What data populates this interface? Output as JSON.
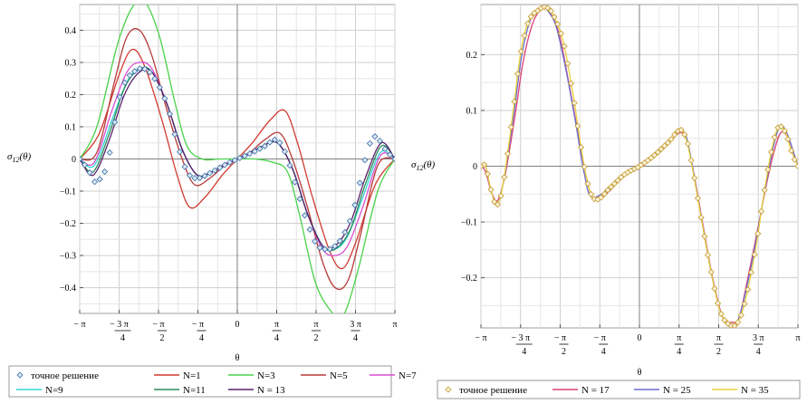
{
  "chart_data": [
    {
      "type": "line",
      "ylabel": "σ12(θ)",
      "xlabel": "θ",
      "xlim": [
        -3.14159,
        3.14159
      ],
      "ylim": [
        -0.48,
        0.48
      ],
      "x_ticks": [
        {
          "v": -3.14159,
          "num": "− π",
          "den": ""
        },
        {
          "v": -2.35619,
          "num": "− 3 π",
          "den": "4"
        },
        {
          "v": -1.5708,
          "num": "− π",
          "den": "2"
        },
        {
          "v": -0.785398,
          "num": "− π",
          "den": "4"
        },
        {
          "v": 0,
          "num": "0",
          "den": ""
        },
        {
          "v": 0.785398,
          "num": "π",
          "den": "4"
        },
        {
          "v": 1.5708,
          "num": "π",
          "den": "2"
        },
        {
          "v": 2.35619,
          "num": "3 π",
          "den": "4"
        },
        {
          "v": 3.14159,
          "num": "π",
          "den": ""
        }
      ],
      "y_ticks": [
        {
          "v": 0.4,
          "label": "0.4"
        },
        {
          "v": 0.3,
          "label": "0.3"
        },
        {
          "v": 0.2,
          "label": "0.2"
        },
        {
          "v": 0.1,
          "label": "0.1"
        },
        {
          "v": 0,
          "label": "0"
        },
        {
          "v": -0.1,
          "label": "−0.1"
        },
        {
          "v": -0.2,
          "label": "−0.2"
        },
        {
          "v": -0.3,
          "label": "−0.3"
        },
        {
          "v": -0.4,
          "label": "−0.4"
        }
      ],
      "grid": true,
      "legend_position": "bottom",
      "exact": {
        "name": "точное решение",
        "color": "#3a6ea5",
        "x": [
          -3.14,
          -2.9,
          -2.83,
          -2.6,
          -2.36,
          -2.2,
          -1.95,
          -1.85,
          -1.65,
          -1.4,
          -1.2,
          -1.0,
          -0.8,
          -0.5,
          -0.2,
          0,
          0.3,
          0.55,
          0.75,
          0.85,
          1.0,
          1.2,
          1.4,
          1.6,
          1.85,
          1.95,
          2.1,
          2.3,
          2.45,
          2.6,
          2.75,
          2.95,
          3.14
        ],
        "y": [
          0,
          -0.05,
          -0.07,
          -0.02,
          0.18,
          0.25,
          0.28,
          0.28,
          0.25,
          0.17,
          0.05,
          -0.04,
          -0.06,
          -0.04,
          -0.015,
          0,
          0.02,
          0.04,
          0.06,
          0.05,
          0.0,
          -0.1,
          -0.2,
          -0.27,
          -0.28,
          -0.27,
          -0.24,
          -0.17,
          -0.07,
          0.03,
          0.07,
          0.03,
          0
        ]
      },
      "series": [
        {
          "name": "N=1",
          "color": "#d03a2f",
          "x": [
            -3.14,
            -2.75,
            -2.36,
            -2.1,
            -1.85,
            -1.5,
            -1.2,
            -0.95,
            -0.65,
            -0.3,
            0,
            0.3,
            0.65,
            0.95,
            1.2,
            1.5,
            1.85,
            2.1,
            2.36,
            2.75,
            3.14
          ],
          "y": [
            0,
            0.08,
            0.26,
            0.34,
            0.29,
            0.12,
            -0.05,
            -0.15,
            -0.12,
            -0.05,
            0,
            0.05,
            0.12,
            0.15,
            0.05,
            -0.12,
            -0.29,
            -0.34,
            -0.26,
            -0.08,
            0
          ]
        },
        {
          "name": "N=3",
          "color": "#4ad24a",
          "x": [
            -3.14,
            -2.8,
            -2.4,
            -2.1,
            -1.85,
            -1.55,
            -1.25,
            -1.0,
            -0.7,
            -0.35,
            0,
            0.35,
            0.7,
            1.0,
            1.25,
            1.55,
            1.85,
            2.1,
            2.4,
            2.8,
            3.14
          ],
          "y": [
            0,
            0.1,
            0.35,
            0.47,
            0.49,
            0.38,
            0.18,
            0.04,
            0.0,
            0.0,
            0,
            0.0,
            -0.01,
            -0.04,
            -0.18,
            -0.38,
            -0.47,
            -0.49,
            -0.35,
            -0.1,
            0
          ]
        },
        {
          "name": "N=5",
          "color": "#b83a3a",
          "x": [
            -3.14,
            -2.8,
            -2.45,
            -2.2,
            -1.95,
            -1.7,
            -1.4,
            -1.1,
            -0.85,
            -0.55,
            -0.25,
            0,
            0.25,
            0.55,
            0.85,
            1.1,
            1.4,
            1.7,
            1.95,
            2.2,
            2.45,
            2.8,
            3.14
          ],
          "y": [
            0,
            0.02,
            0.24,
            0.38,
            0.4,
            0.32,
            0.15,
            0.0,
            -0.08,
            -0.06,
            -0.02,
            0,
            0.02,
            0.06,
            0.08,
            0.0,
            -0.15,
            -0.32,
            -0.4,
            -0.38,
            -0.24,
            -0.02,
            0
          ]
        },
        {
          "name": "N=7",
          "color": "#d94fd1",
          "x": [
            -3.14,
            -2.85,
            -2.5,
            -2.2,
            -1.95,
            -1.7,
            -1.4,
            -1.1,
            -0.8,
            -0.5,
            -0.25,
            0,
            0.25,
            0.5,
            0.8,
            1.1,
            1.4,
            1.7,
            1.95,
            2.2,
            2.5,
            2.85,
            3.14
          ],
          "y": [
            0,
            -0.01,
            0.15,
            0.27,
            0.3,
            0.28,
            0.17,
            0.03,
            -0.05,
            -0.04,
            -0.015,
            0,
            0.015,
            0.04,
            0.05,
            -0.03,
            -0.17,
            -0.28,
            -0.3,
            -0.27,
            -0.15,
            0.01,
            0
          ]
        },
        {
          "name": "N=9",
          "color": "#35d6d6",
          "x": [
            -3.14,
            -2.85,
            -2.5,
            -2.2,
            -1.95,
            -1.7,
            -1.4,
            -1.1,
            -0.8,
            -0.5,
            -0.2,
            0,
            0.2,
            0.5,
            0.8,
            1.1,
            1.4,
            1.7,
            1.95,
            2.2,
            2.5,
            2.85,
            3.14
          ],
          "y": [
            0,
            -0.02,
            0.12,
            0.24,
            0.28,
            0.27,
            0.17,
            0.03,
            -0.05,
            -0.04,
            -0.015,
            0,
            0.015,
            0.04,
            0.05,
            -0.03,
            -0.17,
            -0.27,
            -0.28,
            -0.24,
            -0.12,
            0.02,
            0
          ]
        },
        {
          "name": "N=11",
          "color": "#2e8b57",
          "x": [
            -3.14,
            -2.87,
            -2.55,
            -2.25,
            -1.95,
            -1.7,
            -1.4,
            -1.1,
            -0.8,
            -0.5,
            -0.2,
            0,
            0.2,
            0.5,
            0.8,
            1.1,
            1.4,
            1.7,
            1.95,
            2.25,
            2.55,
            2.87,
            3.14
          ],
          "y": [
            0,
            -0.04,
            0.08,
            0.22,
            0.28,
            0.27,
            0.17,
            0.03,
            -0.05,
            -0.04,
            -0.015,
            0,
            0.015,
            0.04,
            0.05,
            -0.03,
            -0.17,
            -0.27,
            -0.28,
            -0.22,
            -0.08,
            0.04,
            0
          ]
        },
        {
          "name": "N = 13",
          "color": "#5a1f6e",
          "x": [
            -3.14,
            -2.87,
            -2.55,
            -2.25,
            -1.95,
            -1.7,
            -1.4,
            -1.1,
            -0.8,
            -0.5,
            -0.2,
            0,
            0.2,
            0.5,
            0.8,
            1.1,
            1.4,
            1.7,
            1.95,
            2.25,
            2.55,
            2.87,
            3.14
          ],
          "y": [
            0,
            -0.05,
            0.06,
            0.2,
            0.27,
            0.27,
            0.17,
            0.03,
            -0.05,
            -0.04,
            -0.015,
            0,
            0.015,
            0.04,
            0.05,
            -0.03,
            -0.17,
            -0.27,
            -0.27,
            -0.2,
            -0.06,
            0.05,
            0
          ]
        }
      ]
    },
    {
      "type": "line",
      "ylabel": "σ12(θ)",
      "xlabel": "θ",
      "xlim": [
        -3.14159,
        3.14159
      ],
      "ylim": [
        -0.29,
        0.29
      ],
      "x_ticks": [
        {
          "v": -3.14159,
          "num": "− π",
          "den": ""
        },
        {
          "v": -2.35619,
          "num": "− 3 π",
          "den": "4"
        },
        {
          "v": -1.5708,
          "num": "− π",
          "den": "2"
        },
        {
          "v": -0.785398,
          "num": "− π",
          "den": "4"
        },
        {
          "v": 0,
          "num": "0",
          "den": ""
        },
        {
          "v": 0.785398,
          "num": "π",
          "den": "4"
        },
        {
          "v": 1.5708,
          "num": "π",
          "den": "2"
        },
        {
          "v": 2.35619,
          "num": "3 π",
          "den": "4"
        },
        {
          "v": 3.14159,
          "num": "π",
          "den": ""
        }
      ],
      "y_ticks": [
        {
          "v": 0.2,
          "label": "0.2"
        },
        {
          "v": 0.1,
          "label": "0.1"
        },
        {
          "v": 0,
          "label": "0"
        },
        {
          "v": -0.1,
          "label": "−0.1"
        },
        {
          "v": -0.2,
          "label": "−0.2"
        }
      ],
      "grid": true,
      "legend_position": "bottom",
      "exact": {
        "name": "точное решение",
        "color": "#c49a2e",
        "x": [
          -3.14,
          -3.05,
          -2.95,
          -2.83,
          -2.7,
          -2.5,
          -2.36,
          -2.2,
          -2.0,
          -1.85,
          -1.7,
          -1.5,
          -1.3,
          -1.15,
          -1.0,
          -0.85,
          -0.6,
          -0.3,
          0,
          0.3,
          0.6,
          0.8,
          0.9,
          1.0,
          1.2,
          1.4,
          1.6,
          1.8,
          1.95,
          2.1,
          2.3,
          2.45,
          2.6,
          2.75,
          2.9,
          3.0,
          3.14
        ],
        "y": [
          0,
          0,
          -0.04,
          -0.07,
          -0.03,
          0.1,
          0.2,
          0.26,
          0.28,
          0.285,
          0.27,
          0.22,
          0.12,
          0.03,
          -0.04,
          -0.06,
          -0.04,
          -0.015,
          0,
          0.02,
          0.045,
          0.065,
          0.055,
          0.02,
          -0.08,
          -0.18,
          -0.26,
          -0.285,
          -0.28,
          -0.24,
          -0.15,
          -0.06,
          0.02,
          0.07,
          0.06,
          0.03,
          0
        ]
      },
      "series": [
        {
          "name": "N = 17",
          "color": "#d9407a",
          "x": [
            -3.14,
            -3.05,
            -2.92,
            -2.8,
            -2.65,
            -2.45,
            -2.3,
            -2.1,
            -1.9,
            -1.8,
            -1.6,
            -1.4,
            -1.2,
            -1.05,
            -0.9,
            -0.6,
            -0.3,
            0,
            0.3,
            0.6,
            0.8,
            0.92,
            1.05,
            1.25,
            1.45,
            1.65,
            1.85,
            1.98,
            2.15,
            2.35,
            2.5,
            2.65,
            2.8,
            2.95,
            3.14
          ],
          "y": [
            0,
            -0.01,
            -0.05,
            -0.06,
            -0.01,
            0.1,
            0.19,
            0.26,
            0.285,
            0.28,
            0.24,
            0.15,
            0.05,
            -0.02,
            -0.06,
            -0.045,
            -0.015,
            0,
            0.02,
            0.045,
            0.06,
            0.05,
            0.0,
            -0.1,
            -0.2,
            -0.27,
            -0.28,
            -0.27,
            -0.2,
            -0.11,
            -0.04,
            0.02,
            0.06,
            0.05,
            0
          ]
        },
        {
          "name": "N = 25",
          "color": "#6a6fd0",
          "x": [
            -3.14,
            -3.05,
            -2.95,
            -2.82,
            -2.68,
            -2.48,
            -2.33,
            -2.15,
            -1.95,
            -1.83,
            -1.65,
            -1.45,
            -1.25,
            -1.1,
            -0.95,
            -0.6,
            -0.3,
            0,
            0.3,
            0.6,
            0.8,
            0.92,
            1.03,
            1.22,
            1.42,
            1.62,
            1.82,
            1.96,
            2.12,
            2.32,
            2.47,
            2.62,
            2.77,
            2.92,
            3.14
          ],
          "y": [
            0,
            0,
            -0.04,
            -0.07,
            -0.02,
            0.1,
            0.2,
            0.265,
            0.285,
            0.28,
            0.25,
            0.17,
            0.07,
            -0.01,
            -0.055,
            -0.04,
            -0.015,
            0,
            0.02,
            0.045,
            0.063,
            0.055,
            0.01,
            -0.09,
            -0.19,
            -0.265,
            -0.285,
            -0.275,
            -0.22,
            -0.13,
            -0.05,
            0.02,
            0.07,
            0.06,
            0
          ]
        },
        {
          "name": "N = 35",
          "color": "#e8d23a",
          "x": [
            -3.14,
            -3.05,
            -2.95,
            -2.83,
            -2.7,
            -2.5,
            -2.36,
            -2.2,
            -2.0,
            -1.85,
            -1.7,
            -1.5,
            -1.3,
            -1.15,
            -1.0,
            -0.85,
            -0.6,
            -0.3,
            0,
            0.3,
            0.6,
            0.8,
            0.9,
            1.0,
            1.2,
            1.4,
            1.6,
            1.8,
            1.95,
            2.1,
            2.3,
            2.45,
            2.6,
            2.75,
            2.9,
            3.0,
            3.14
          ],
          "y": [
            0,
            0,
            -0.04,
            -0.07,
            -0.03,
            0.1,
            0.2,
            0.26,
            0.28,
            0.285,
            0.27,
            0.22,
            0.12,
            0.03,
            -0.04,
            -0.06,
            -0.04,
            -0.015,
            0,
            0.02,
            0.045,
            0.065,
            0.055,
            0.02,
            -0.08,
            -0.18,
            -0.26,
            -0.285,
            -0.28,
            -0.24,
            -0.15,
            -0.06,
            0.02,
            0.07,
            0.06,
            0.03,
            0
          ]
        }
      ]
    }
  ]
}
